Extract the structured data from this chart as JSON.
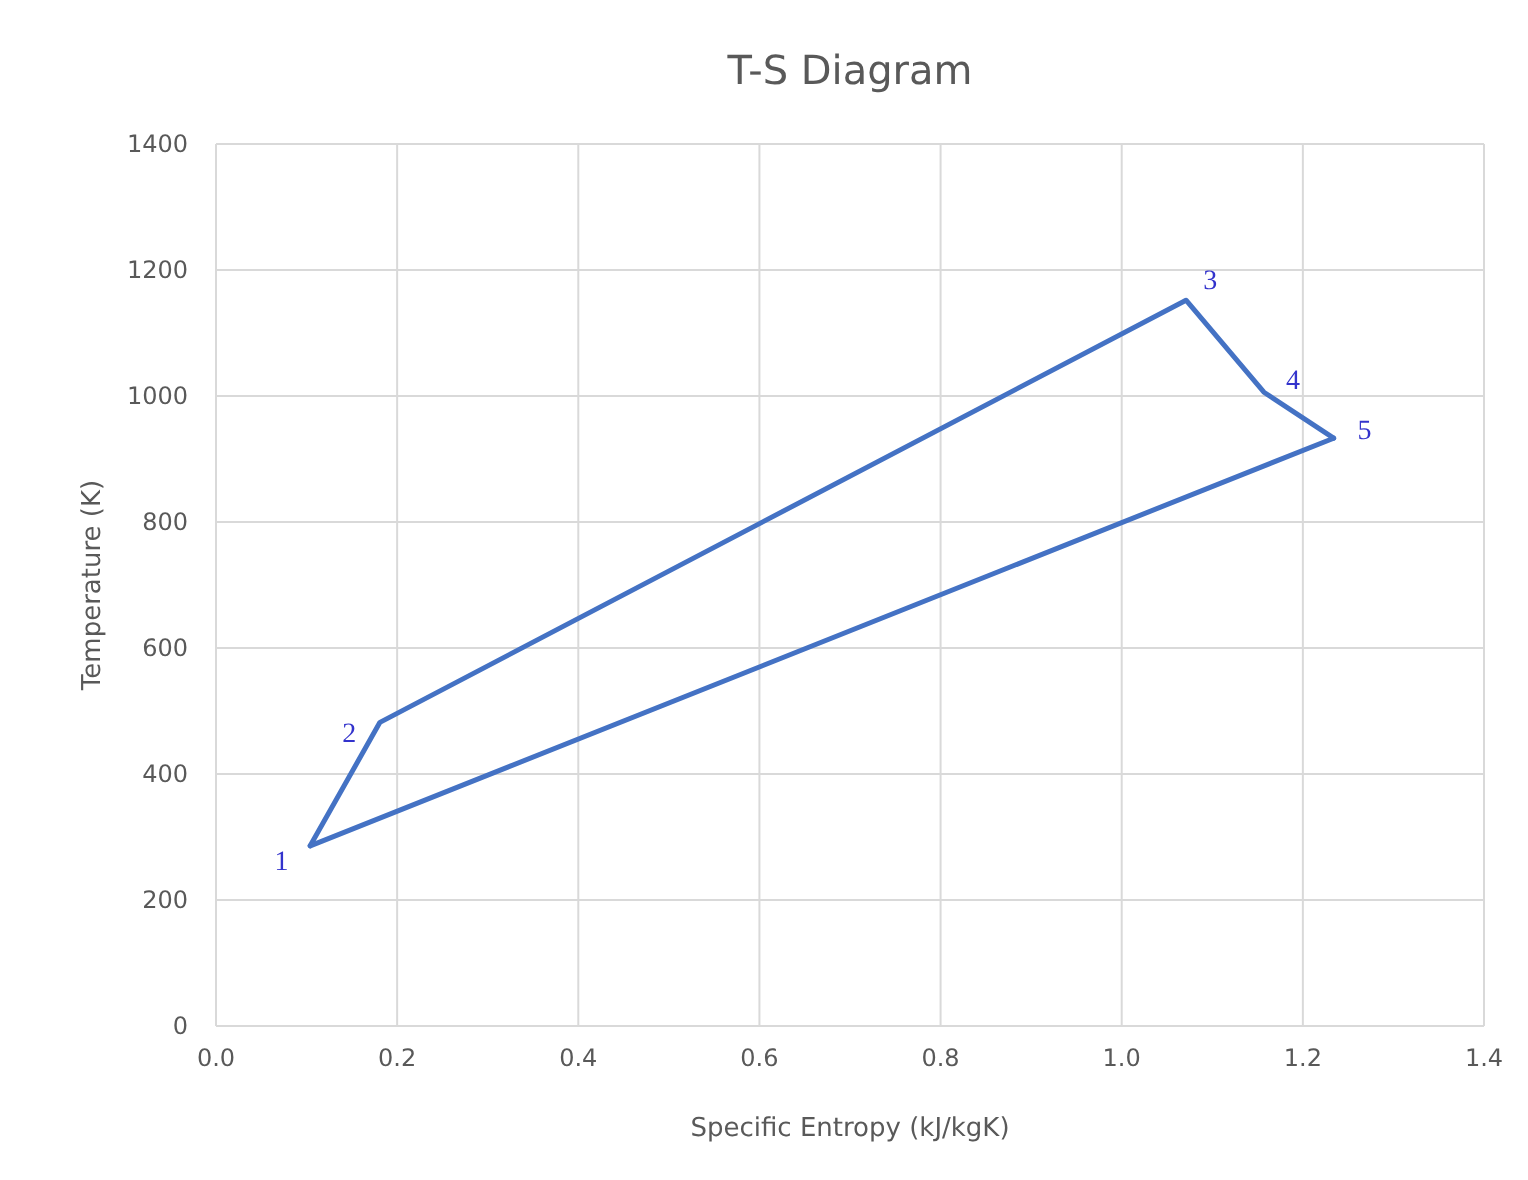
{
  "chart_data": {
    "type": "line",
    "title": "T-S Diagram",
    "xlabel": "Specific Entropy (kJ/kgK)",
    "ylabel": "Temperature (K)",
    "xlim": [
      0,
      1.4
    ],
    "xticks": [
      {
        "value": 0,
        "label": "0.0"
      },
      {
        "value": 0.2,
        "label": "0.2"
      },
      {
        "value": 0.4,
        "label": "0.4"
      },
      {
        "value": 0.6,
        "label": "0.6"
      },
      {
        "value": 0.8,
        "label": "0.8"
      },
      {
        "value": 1,
        "label": "1.0"
      },
      {
        "value": 1.2,
        "label": "1.2"
      },
      {
        "value": 1.4,
        "label": "1.4"
      }
    ],
    "ylim": [
      0,
      1400
    ],
    "yticks": [
      0,
      200,
      400,
      600,
      800,
      1000,
      1200,
      1400
    ],
    "grid": true,
    "marker": "none",
    "line_style": "solid",
    "series": [
      {
        "color": "#4472c4",
        "x": [
          0.104,
          0.181,
          1.071,
          1.157,
          1.234
        ],
        "values": [
          286,
          482,
          1152,
          1006,
          933
        ]
      },
      {
        "color": "#4472c4",
        "x": [
          0.104,
          1.234
        ],
        "values": [
          286,
          933
        ]
      }
    ],
    "annotations": [
      {
        "text": "1",
        "x": 0.104,
        "y": 286
      },
      {
        "text": "2",
        "x": 0.181,
        "y": 482
      },
      {
        "text": "3",
        "x": 1.071,
        "y": 1152
      },
      {
        "text": "4",
        "x": 1.157,
        "y": 1006
      },
      {
        "text": "5",
        "x": 1.234,
        "y": 933
      }
    ]
  }
}
